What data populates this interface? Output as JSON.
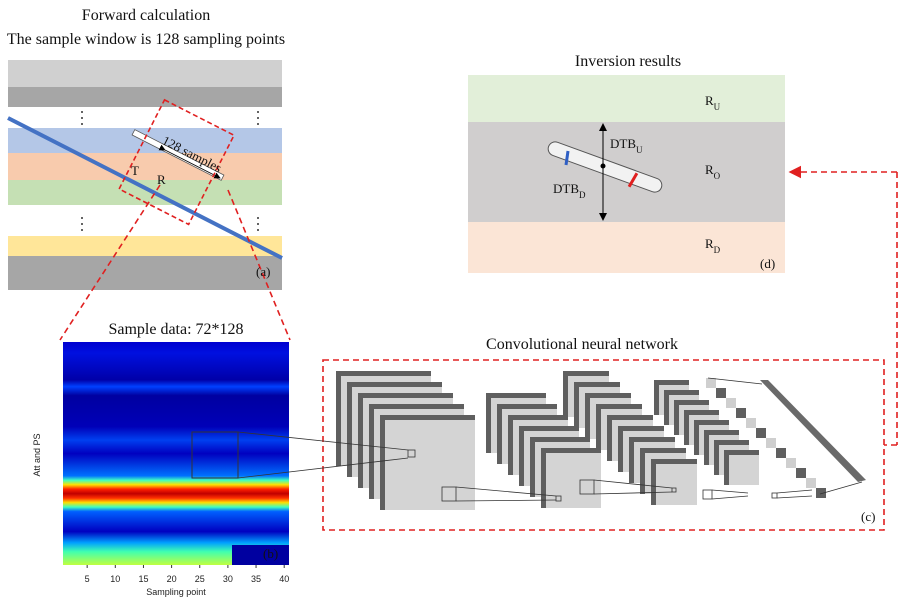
{
  "forward": {
    "title": "Forward calculation",
    "subtitle": "The sample window is 128 sampling points",
    "window_label": "128 samples",
    "transmitter": "T",
    "receiver": "R",
    "panel": "(a)"
  },
  "inversion": {
    "title": "Inversion results",
    "upper": {
      "base": "R",
      "sub": "U"
    },
    "middle": {
      "base": "R",
      "sub": "O"
    },
    "lower": {
      "base": "R",
      "sub": "D"
    },
    "dtb_up": {
      "base": "DTB",
      "sub": "U"
    },
    "dtb_down": {
      "base": "DTB",
      "sub": "D"
    },
    "panel": "(d)"
  },
  "sample": {
    "title": "Sample data: 72*128",
    "ylabel": "Att and PS",
    "xlabel": "Sampling point",
    "xticks": [
      5,
      10,
      15,
      20,
      25,
      30,
      35,
      40
    ],
    "panel": "(b)"
  },
  "cnn": {
    "title": "Convolutional neural network",
    "panel": "(c)"
  }
}
